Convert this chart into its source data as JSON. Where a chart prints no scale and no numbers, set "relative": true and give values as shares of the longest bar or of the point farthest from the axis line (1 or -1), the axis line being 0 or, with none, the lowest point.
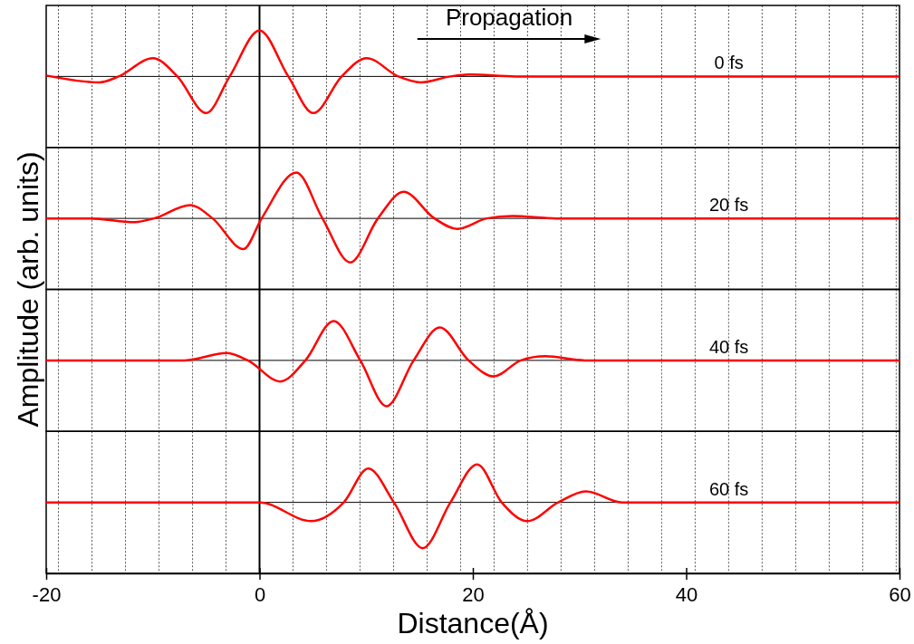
{
  "chart_data": [
    {
      "type": "line",
      "relative": true,
      "xlim": [
        -20,
        60
      ],
      "tick_labels": false,
      "ylabel": "Amplitude (arb. units)",
      "annotations": [
        "Propagation"
      ],
      "series": [
        {
          "name": "0 fs",
          "color": "#ff0000",
          "x": [
            -20,
            -15,
            -13.2,
            -10,
            -7.7,
            -5,
            -2.8,
            0,
            2.7,
            5.05,
            7.7,
            10.05,
            13,
            15.1,
            17.9,
            19.7,
            24,
            60
          ],
          "values": [
            0.02,
            -0.13,
            0,
            0.4,
            0,
            -0.8,
            0,
            1,
            0,
            -0.8,
            0,
            0.4,
            0,
            -0.13,
            0,
            0.04,
            0,
            0
          ]
        }
      ],
      "ref_lines": [
        {
          "axis": "x",
          "value": 0,
          "color": "#000000",
          "line_style": "solid"
        },
        {
          "axis": "x",
          "value": -18.85,
          "line_style": "dotted"
        },
        {
          "axis": "x",
          "value": -15.71,
          "line_style": "dotted"
        },
        {
          "axis": "x",
          "value": -12.57,
          "line_style": "dotted"
        },
        {
          "axis": "x",
          "value": -9.42,
          "line_style": "dotted"
        },
        {
          "axis": "x",
          "value": -6.28,
          "line_style": "dotted"
        },
        {
          "axis": "x",
          "value": -3.14,
          "line_style": "dotted"
        },
        {
          "axis": "x",
          "value": 3.14,
          "line_style": "dotted"
        },
        {
          "axis": "x",
          "value": 6.28,
          "line_style": "dotted"
        },
        {
          "axis": "x",
          "value": 9.42,
          "line_style": "dotted"
        },
        {
          "axis": "x",
          "value": 12.57,
          "line_style": "dotted"
        },
        {
          "axis": "x",
          "value": 15.71,
          "line_style": "dotted"
        },
        {
          "axis": "x",
          "value": 18.85,
          "line_style": "dotted"
        },
        {
          "axis": "x",
          "value": 21.99,
          "line_style": "dotted"
        },
        {
          "axis": "x",
          "value": 25.13,
          "line_style": "dotted"
        },
        {
          "axis": "x",
          "value": 28.27,
          "line_style": "dotted"
        },
        {
          "axis": "x",
          "value": 31.42,
          "line_style": "dotted"
        },
        {
          "axis": "x",
          "value": 34.56,
          "line_style": "dotted"
        },
        {
          "axis": "x",
          "value": 37.7,
          "line_style": "dotted"
        },
        {
          "axis": "x",
          "value": 40.84,
          "line_style": "dotted"
        },
        {
          "axis": "x",
          "value": 43.98,
          "line_style": "dotted"
        },
        {
          "axis": "x",
          "value": 47.12,
          "line_style": "dotted"
        },
        {
          "axis": "x",
          "value": 50.27,
          "line_style": "dotted"
        },
        {
          "axis": "x",
          "value": 53.41,
          "line_style": "dotted"
        },
        {
          "axis": "x",
          "value": 56.55,
          "line_style": "dotted"
        },
        {
          "axis": "x",
          "value": 59.69,
          "line_style": "dotted"
        }
      ]
    },
    {
      "type": "line",
      "relative": true,
      "xlim": [
        -20,
        60
      ],
      "tick_labels": false,
      "series": [
        {
          "name": "20 fs",
          "color": "#ff0000",
          "x": [
            -20,
            -15.9,
            -11.7,
            -9.9,
            -6.5,
            -4.4,
            -1.5,
            0.2,
            3.45,
            5.9,
            8.5,
            11.1,
            13.5,
            16.4,
            18.55,
            21.3,
            23.7,
            27.8,
            60
          ],
          "values": [
            0,
            0,
            -0.08,
            0,
            0.29,
            0,
            -0.67,
            0,
            1,
            0,
            -0.96,
            0,
            0.58,
            0,
            -0.23,
            0,
            0.05,
            0,
            0
          ]
        }
      ],
      "ref_lines": [
        {
          "axis": "x",
          "value": 0,
          "color": "#000000",
          "line_style": "solid"
        },
        {
          "axis": "x",
          "value": -18.85,
          "line_style": "dotted"
        },
        {
          "axis": "x",
          "value": -15.71,
          "line_style": "dotted"
        },
        {
          "axis": "x",
          "value": -12.57,
          "line_style": "dotted"
        },
        {
          "axis": "x",
          "value": -9.42,
          "line_style": "dotted"
        },
        {
          "axis": "x",
          "value": -6.28,
          "line_style": "dotted"
        },
        {
          "axis": "x",
          "value": -3.14,
          "line_style": "dotted"
        },
        {
          "axis": "x",
          "value": 3.14,
          "line_style": "dotted"
        },
        {
          "axis": "x",
          "value": 6.28,
          "line_style": "dotted"
        },
        {
          "axis": "x",
          "value": 9.42,
          "line_style": "dotted"
        },
        {
          "axis": "x",
          "value": 12.57,
          "line_style": "dotted"
        },
        {
          "axis": "x",
          "value": 15.71,
          "line_style": "dotted"
        },
        {
          "axis": "x",
          "value": 18.85,
          "line_style": "dotted"
        },
        {
          "axis": "x",
          "value": 21.99,
          "line_style": "dotted"
        },
        {
          "axis": "x",
          "value": 25.13,
          "line_style": "dotted"
        },
        {
          "axis": "x",
          "value": 28.27,
          "line_style": "dotted"
        },
        {
          "axis": "x",
          "value": 31.42,
          "line_style": "dotted"
        },
        {
          "axis": "x",
          "value": 34.56,
          "line_style": "dotted"
        },
        {
          "axis": "x",
          "value": 37.7,
          "line_style": "dotted"
        },
        {
          "axis": "x",
          "value": 40.84,
          "line_style": "dotted"
        },
        {
          "axis": "x",
          "value": 43.98,
          "line_style": "dotted"
        },
        {
          "axis": "x",
          "value": 47.12,
          "line_style": "dotted"
        },
        {
          "axis": "x",
          "value": 50.27,
          "line_style": "dotted"
        },
        {
          "axis": "x",
          "value": 53.41,
          "line_style": "dotted"
        },
        {
          "axis": "x",
          "value": 56.55,
          "line_style": "dotted"
        },
        {
          "axis": "x",
          "value": 59.69,
          "line_style": "dotted"
        }
      ]
    },
    {
      "type": "line",
      "relative": true,
      "xlim": [
        -20,
        60
      ],
      "tick_labels": false,
      "series": [
        {
          "name": "40 fs",
          "color": "#ff0000",
          "x": [
            -20,
            -7,
            -3.07,
            -1.1,
            1.95,
            4.3,
            6.95,
            9.45,
            11.9,
            14.45,
            16.9,
            19.6,
            21.95,
            24.5,
            26.8,
            30.5,
            60
          ],
          "values": [
            0,
            0,
            0.16,
            0,
            -0.46,
            0,
            0.86,
            0,
            -1,
            0,
            0.72,
            0,
            -0.35,
            0,
            0.09,
            0,
            0
          ]
        }
      ],
      "ref_lines": [
        {
          "axis": "x",
          "value": 0,
          "color": "#000000",
          "line_style": "solid"
        },
        {
          "axis": "x",
          "value": -18.85,
          "line_style": "dotted"
        },
        {
          "axis": "x",
          "value": -15.71,
          "line_style": "dotted"
        },
        {
          "axis": "x",
          "value": -12.57,
          "line_style": "dotted"
        },
        {
          "axis": "x",
          "value": -9.42,
          "line_style": "dotted"
        },
        {
          "axis": "x",
          "value": -6.28,
          "line_style": "dotted"
        },
        {
          "axis": "x",
          "value": -3.14,
          "line_style": "dotted"
        },
        {
          "axis": "x",
          "value": 3.14,
          "line_style": "dotted"
        },
        {
          "axis": "x",
          "value": 6.28,
          "line_style": "dotted"
        },
        {
          "axis": "x",
          "value": 9.42,
          "line_style": "dotted"
        },
        {
          "axis": "x",
          "value": 12.57,
          "line_style": "dotted"
        },
        {
          "axis": "x",
          "value": 15.71,
          "line_style": "dotted"
        },
        {
          "axis": "x",
          "value": 18.85,
          "line_style": "dotted"
        },
        {
          "axis": "x",
          "value": 21.99,
          "line_style": "dotted"
        },
        {
          "axis": "x",
          "value": 25.13,
          "line_style": "dotted"
        },
        {
          "axis": "x",
          "value": 28.27,
          "line_style": "dotted"
        },
        {
          "axis": "x",
          "value": 31.42,
          "line_style": "dotted"
        },
        {
          "axis": "x",
          "value": 34.56,
          "line_style": "dotted"
        },
        {
          "axis": "x",
          "value": 37.7,
          "line_style": "dotted"
        },
        {
          "axis": "x",
          "value": 40.84,
          "line_style": "dotted"
        },
        {
          "axis": "x",
          "value": 43.98,
          "line_style": "dotted"
        },
        {
          "axis": "x",
          "value": 47.12,
          "line_style": "dotted"
        },
        {
          "axis": "x",
          "value": 50.27,
          "line_style": "dotted"
        },
        {
          "axis": "x",
          "value": 53.41,
          "line_style": "dotted"
        },
        {
          "axis": "x",
          "value": 56.55,
          "line_style": "dotted"
        },
        {
          "axis": "x",
          "value": 59.69,
          "line_style": "dotted"
        }
      ]
    },
    {
      "type": "line",
      "relative": true,
      "xlim": [
        -20,
        60
      ],
      "tick_labels": "x",
      "xlabel": "Distance(Å)",
      "xticks": [
        -20,
        0,
        20,
        40,
        60
      ],
      "series": [
        {
          "name": "60 fs",
          "color": "#ff0000",
          "x": [
            -20,
            0,
            4.85,
            7.9,
            10.2,
            12.6,
            15.3,
            17.9,
            20.4,
            22.7,
            25.1,
            28,
            30.6,
            34,
            60
          ],
          "values": [
            0,
            0,
            -0.41,
            0,
            0.74,
            0,
            -1,
            0,
            0.83,
            0,
            -0.41,
            0,
            0.24,
            0,
            0
          ]
        }
      ],
      "ref_lines": [
        {
          "axis": "x",
          "value": 0,
          "color": "#000000",
          "line_style": "solid"
        },
        {
          "axis": "x",
          "value": -18.85,
          "line_style": "dotted"
        },
        {
          "axis": "x",
          "value": -15.71,
          "line_style": "dotted"
        },
        {
          "axis": "x",
          "value": -12.57,
          "line_style": "dotted"
        },
        {
          "axis": "x",
          "value": -9.42,
          "line_style": "dotted"
        },
        {
          "axis": "x",
          "value": -6.28,
          "line_style": "dotted"
        },
        {
          "axis": "x",
          "value": -3.14,
          "line_style": "dotted"
        },
        {
          "axis": "x",
          "value": 3.14,
          "line_style": "dotted"
        },
        {
          "axis": "x",
          "value": 6.28,
          "line_style": "dotted"
        },
        {
          "axis": "x",
          "value": 9.42,
          "line_style": "dotted"
        },
        {
          "axis": "x",
          "value": 12.57,
          "line_style": "dotted"
        },
        {
          "axis": "x",
          "value": 15.71,
          "line_style": "dotted"
        },
        {
          "axis": "x",
          "value": 18.85,
          "line_style": "dotted"
        },
        {
          "axis": "x",
          "value": 21.99,
          "line_style": "dotted"
        },
        {
          "axis": "x",
          "value": 25.13,
          "line_style": "dotted"
        },
        {
          "axis": "x",
          "value": 28.27,
          "line_style": "dotted"
        },
        {
          "axis": "x",
          "value": 31.42,
          "line_style": "dotted"
        },
        {
          "axis": "x",
          "value": 34.56,
          "line_style": "dotted"
        },
        {
          "axis": "x",
          "value": 37.7,
          "line_style": "dotted"
        },
        {
          "axis": "x",
          "value": 40.84,
          "line_style": "dotted"
        },
        {
          "axis": "x",
          "value": 43.98,
          "line_style": "dotted"
        },
        {
          "axis": "x",
          "value": 47.12,
          "line_style": "dotted"
        },
        {
          "axis": "x",
          "value": 50.27,
          "line_style": "dotted"
        },
        {
          "axis": "x",
          "value": 53.41,
          "line_style": "dotted"
        },
        {
          "axis": "x",
          "value": 56.55,
          "line_style": "dotted"
        },
        {
          "axis": "x",
          "value": 59.69,
          "line_style": "dotted"
        }
      ]
    }
  ]
}
